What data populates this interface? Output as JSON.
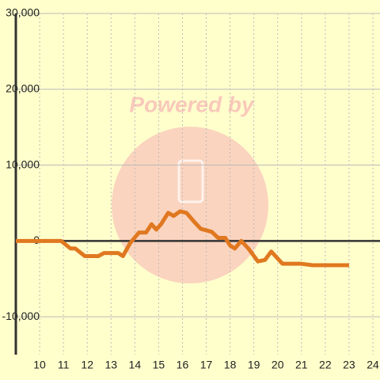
{
  "chart_data": {
    "type": "line",
    "watermark": "Powered by",
    "x": [
      9.0,
      10.9,
      11.3,
      11.5,
      11.9,
      12.47,
      12.7,
      13.3,
      13.5,
      13.8,
      14.17,
      14.47,
      14.7,
      14.9,
      15.1,
      15.4,
      15.63,
      15.9,
      16.17,
      16.5,
      16.77,
      17.23,
      17.5,
      17.8,
      18.0,
      18.2,
      18.47,
      18.77,
      19.17,
      19.47,
      19.73,
      20.2,
      20.97,
      21.47,
      23.0
    ],
    "series": [
      {
        "color": "#e07820",
        "values": [
          0,
          0,
          -1000,
          -1000,
          -2000,
          -2000,
          -1600,
          -1600,
          -2000,
          -300,
          1100,
          1100,
          2200,
          1500,
          2200,
          3700,
          3300,
          3900,
          3700,
          2500,
          1600,
          1200,
          400,
          400,
          -600,
          -1000,
          0,
          -1000,
          -2700,
          -2500,
          -1400,
          -3000,
          -3000,
          -3200,
          -3200
        ]
      }
    ],
    "xlim": [
      9,
      24.3
    ],
    "xticks": [
      10,
      11,
      12,
      13,
      14,
      15,
      16,
      17,
      18,
      19,
      20,
      21,
      22,
      23,
      24
    ],
    "ylim": [
      -15000,
      30000
    ],
    "yticks": [
      {
        "value": -10000,
        "label": "-10,000"
      },
      0,
      {
        "value": 10000,
        "label": "10,000"
      },
      {
        "value": 20000,
        "label": "20,000"
      },
      {
        "value": 30000,
        "label": "30,000"
      }
    ],
    "grid": true
  }
}
